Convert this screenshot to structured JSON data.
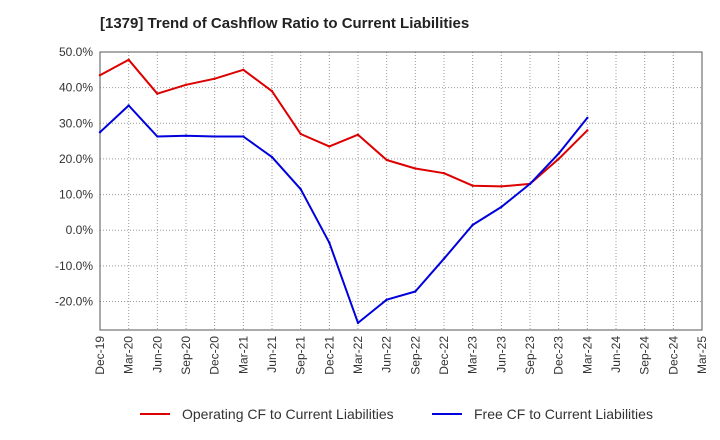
{
  "chart_data": {
    "type": "line",
    "title": "[1379]  Trend of Cashflow Ratio to Current Liabilities",
    "xlabel": "",
    "ylabel": "",
    "categories": [
      "Dec-19",
      "Mar-20",
      "Jun-20",
      "Sep-20",
      "Dec-20",
      "Mar-21",
      "Jun-21",
      "Sep-21",
      "Dec-21",
      "Mar-22",
      "Jun-22",
      "Sep-22",
      "Dec-22",
      "Mar-23",
      "Jun-23",
      "Sep-23",
      "Dec-23",
      "Mar-24",
      "Jun-24",
      "Sep-24",
      "Dec-24",
      "Mar-25"
    ],
    "y_ticks": [
      -20,
      -10,
      0,
      10,
      20,
      30,
      40,
      50
    ],
    "y_tick_labels": [
      "-20.0%",
      "-10.0%",
      "0.0%",
      "10.0%",
      "20.0%",
      "30.0%",
      "40.0%",
      "50.0%"
    ],
    "ylim": [
      -28,
      50
    ],
    "grid": true,
    "legend_position": "bottom",
    "series": [
      {
        "name": "Operating CF to Current Liabilities",
        "color": "#dd0000",
        "values": [
          43.5,
          47.8,
          38.3,
          40.8,
          42.5,
          45.0,
          39.0,
          27.0,
          23.5,
          26.8,
          19.7,
          17.3,
          16.0,
          12.5,
          12.3,
          13.0,
          20.0,
          28.0,
          null,
          null,
          null,
          null
        ]
      },
      {
        "name": "Free CF to Current Liabilities",
        "color": "#0000dd",
        "values": [
          27.5,
          35.0,
          26.3,
          26.5,
          26.3,
          26.3,
          20.5,
          11.5,
          -3.5,
          -26.0,
          -19.5,
          -17.2,
          -8.0,
          1.5,
          6.5,
          13.0,
          21.5,
          31.5,
          null,
          null,
          null,
          null
        ]
      }
    ]
  }
}
